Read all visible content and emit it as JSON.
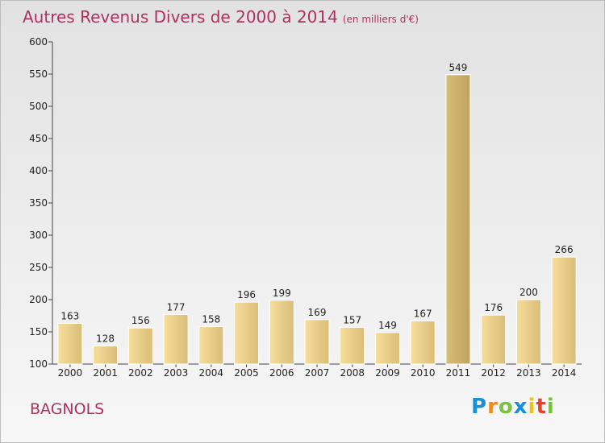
{
  "header": {
    "title": "Autres Revenus Divers de 2000 à 2014",
    "unit": "(en milliers d'€)"
  },
  "footer": {
    "place": "BAGNOLS",
    "logo": "Proxiti"
  },
  "colors": {
    "title": "#b03060",
    "bar_light": "#f6de9a",
    "bar_dark": "#c9ad6a",
    "highlight_bar_dark": "#bfa35f"
  },
  "chart_data": {
    "type": "bar",
    "title": "Autres Revenus Divers de 2000 à 2014",
    "subtitle": "(en milliers d'€)",
    "categories": [
      "2000",
      "2001",
      "2002",
      "2003",
      "2004",
      "2005",
      "2006",
      "2007",
      "2008",
      "2009",
      "2010",
      "2011",
      "2012",
      "2013",
      "2014"
    ],
    "values": [
      163,
      128,
      156,
      177,
      158,
      196,
      199,
      169,
      157,
      149,
      167,
      549,
      176,
      200,
      266
    ],
    "xlabel": "",
    "ylabel": "",
    "ylim": [
      100,
      600
    ],
    "yticks": [
      100,
      150,
      200,
      250,
      300,
      350,
      400,
      450,
      500,
      550,
      600
    ],
    "grid": false,
    "legend": "none",
    "highlight_category": "2011"
  }
}
